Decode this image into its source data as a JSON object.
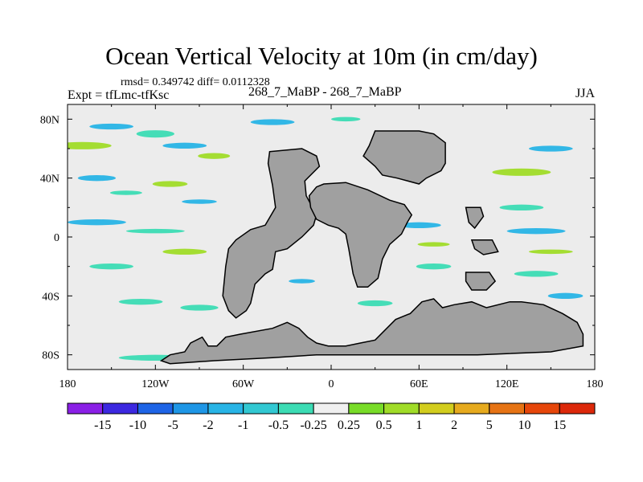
{
  "chart_data": {
    "type": "heatmap",
    "title": "Ocean Vertical Velocity at 10m (in cm/day)",
    "stats_label": "rmsd= 0.349742 diff= 0.0112328",
    "left_label": "Expt = tfLmc-tfKsc",
    "center_label": "268_7_MaBP - 268_7_MaBP",
    "right_label": "JJA",
    "x_ticks": [
      {
        "value": -180,
        "label": "180"
      },
      {
        "value": -120,
        "label": "120W"
      },
      {
        "value": -60,
        "label": "60W"
      },
      {
        "value": 0,
        "label": "0"
      },
      {
        "value": 60,
        "label": "60E"
      },
      {
        "value": 120,
        "label": "120E"
      },
      {
        "value": 180,
        "label": "180"
      }
    ],
    "y_ticks": [
      {
        "value": 80,
        "label": "80N"
      },
      {
        "value": 40,
        "label": "40N"
      },
      {
        "value": 0,
        "label": "0"
      },
      {
        "value": -40,
        "label": "40S"
      },
      {
        "value": -80,
        "label": "80S"
      }
    ],
    "xlim": [
      -180,
      180
    ],
    "ylim": [
      -90,
      90
    ],
    "colorbar": {
      "labels": [
        "-15",
        "-10",
        "-5",
        "-2",
        "-1",
        "-0.5",
        "-0.25",
        "0.25",
        "0.5",
        "1",
        "2",
        "5",
        "10",
        "15"
      ],
      "colors": [
        "#8a1fe6",
        "#3c28e0",
        "#1e64e6",
        "#1e96e6",
        "#28b4e6",
        "#32c8d2",
        "#3cdcb4",
        "#f0f0f0",
        "#78dc28",
        "#a0dc28",
        "#d2cd1e",
        "#e6aa1e",
        "#e67314",
        "#e6460a",
        "#dc280a"
      ]
    },
    "colors": {
      "land": "#a0a0a0",
      "neutral": "#ececec",
      "blue": "#28b4e6",
      "teal": "#3cdcb4",
      "green": "#a0dc28"
    },
    "land_polygons": [
      [
        [
          -42,
          58
        ],
        [
          -20,
          60
        ],
        [
          -10,
          55
        ],
        [
          -8,
          48
        ],
        [
          -18,
          38
        ],
        [
          -17,
          28
        ],
        [
          -10,
          15
        ],
        [
          -12,
          8
        ],
        [
          -20,
          0
        ],
        [
          -30,
          -8
        ],
        [
          -38,
          -10
        ],
        [
          -40,
          -22
        ],
        [
          -45,
          -25
        ],
        [
          -52,
          -32
        ],
        [
          -55,
          -45
        ],
        [
          -58,
          -50
        ],
        [
          -65,
          -55
        ],
        [
          -70,
          -50
        ],
        [
          -74,
          -40
        ],
        [
          -72,
          -20
        ],
        [
          -70,
          -8
        ],
        [
          -65,
          -2
        ],
        [
          -55,
          5
        ],
        [
          -45,
          8
        ],
        [
          -38,
          20
        ],
        [
          -40,
          35
        ],
        [
          -43,
          50
        ]
      ],
      [
        [
          30,
          72
        ],
        [
          60,
          72
        ],
        [
          70,
          70
        ],
        [
          78,
          64
        ],
        [
          78,
          50
        ],
        [
          75,
          45
        ],
        [
          65,
          40
        ],
        [
          60,
          36
        ],
        [
          45,
          40
        ],
        [
          35,
          42
        ],
        [
          30,
          48
        ],
        [
          22,
          55
        ],
        [
          26,
          62
        ]
      ],
      [
        [
          -5,
          36
        ],
        [
          10,
          37
        ],
        [
          25,
          32
        ],
        [
          40,
          25
        ],
        [
          50,
          22
        ],
        [
          55,
          15
        ],
        [
          52,
          10
        ],
        [
          48,
          2
        ],
        [
          40,
          -5
        ],
        [
          35,
          -15
        ],
        [
          32,
          -28
        ],
        [
          25,
          -34
        ],
        [
          18,
          -34
        ],
        [
          15,
          -25
        ],
        [
          12,
          -8
        ],
        [
          10,
          2
        ],
        [
          5,
          6
        ],
        [
          -2,
          8
        ],
        [
          -10,
          12
        ],
        [
          -14,
          20
        ],
        [
          -15,
          28
        ],
        [
          -10,
          34
        ]
      ],
      [
        [
          92,
          20
        ],
        [
          102,
          20
        ],
        [
          104,
          14
        ],
        [
          98,
          6
        ],
        [
          94,
          10
        ]
      ],
      [
        [
          96,
          -2
        ],
        [
          110,
          -2
        ],
        [
          114,
          -10
        ],
        [
          104,
          -12
        ],
        [
          98,
          -8
        ]
      ],
      [
        [
          92,
          -24
        ],
        [
          108,
          -24
        ],
        [
          112,
          -30
        ],
        [
          106,
          -36
        ],
        [
          96,
          -36
        ],
        [
          92,
          -30
        ]
      ],
      [
        [
          62,
          -44
        ],
        [
          70,
          -42
        ],
        [
          76,
          -48
        ],
        [
          84,
          -46
        ],
        [
          96,
          -44
        ],
        [
          106,
          -48
        ],
        [
          122,
          -44
        ],
        [
          130,
          -44
        ],
        [
          145,
          -46
        ],
        [
          158,
          -52
        ],
        [
          168,
          -58
        ],
        [
          172,
          -66
        ],
        [
          172,
          -74
        ],
        [
          150,
          -78
        ],
        [
          100,
          -80
        ],
        [
          60,
          -80
        ],
        [
          30,
          -80
        ],
        [
          10,
          -80
        ],
        [
          -10,
          -80
        ],
        [
          -40,
          -82
        ],
        [
          -80,
          -84
        ],
        [
          -110,
          -86
        ],
        [
          -116,
          -84
        ],
        [
          -110,
          -80
        ],
        [
          -100,
          -78
        ],
        [
          -96,
          -72
        ],
        [
          -88,
          -68
        ],
        [
          -84,
          -74
        ],
        [
          -78,
          -74
        ],
        [
          -72,
          -68
        ],
        [
          -62,
          -66
        ],
        [
          -40,
          -62
        ],
        [
          -30,
          -58
        ],
        [
          -22,
          -62
        ],
        [
          -16,
          -68
        ],
        [
          -10,
          -72
        ],
        [
          -2,
          -74
        ],
        [
          10,
          -74
        ],
        [
          20,
          -72
        ],
        [
          30,
          -70
        ],
        [
          36,
          -64
        ],
        [
          44,
          -56
        ],
        [
          54,
          -52
        ]
      ]
    ],
    "anomaly_bands": [
      {
        "lon": -170,
        "lat": 62,
        "w": 40,
        "h": 5,
        "cat": "green"
      },
      {
        "lon": -150,
        "lat": 75,
        "w": 30,
        "h": 4,
        "cat": "blue"
      },
      {
        "lon": -120,
        "lat": 70,
        "w": 26,
        "h": 5,
        "cat": "teal"
      },
      {
        "lon": -100,
        "lat": 62,
        "w": 30,
        "h": 4,
        "cat": "blue"
      },
      {
        "lon": -80,
        "lat": 55,
        "w": 22,
        "h": 4,
        "cat": "green"
      },
      {
        "lon": -160,
        "lat": 40,
        "w": 26,
        "h": 4,
        "cat": "blue"
      },
      {
        "lon": -140,
        "lat": 30,
        "w": 22,
        "h": 3,
        "cat": "teal"
      },
      {
        "lon": -110,
        "lat": 36,
        "w": 24,
        "h": 4,
        "cat": "green"
      },
      {
        "lon": -90,
        "lat": 24,
        "w": 24,
        "h": 3,
        "cat": "blue"
      },
      {
        "lon": -160,
        "lat": 10,
        "w": 40,
        "h": 4,
        "cat": "blue"
      },
      {
        "lon": -120,
        "lat": 4,
        "w": 40,
        "h": 3,
        "cat": "teal"
      },
      {
        "lon": -100,
        "lat": -10,
        "w": 30,
        "h": 4,
        "cat": "green"
      },
      {
        "lon": -150,
        "lat": -20,
        "w": 30,
        "h": 4,
        "cat": "teal"
      },
      {
        "lon": -130,
        "lat": -44,
        "w": 30,
        "h": 4,
        "cat": "teal"
      },
      {
        "lon": -90,
        "lat": -48,
        "w": 26,
        "h": 4,
        "cat": "teal"
      },
      {
        "lon": -120,
        "lat": -82,
        "w": 50,
        "h": 4,
        "cat": "teal"
      },
      {
        "lon": -40,
        "lat": 78,
        "w": 30,
        "h": 4,
        "cat": "blue"
      },
      {
        "lon": 10,
        "lat": 80,
        "w": 20,
        "h": 3,
        "cat": "teal"
      },
      {
        "lon": -20,
        "lat": -30,
        "w": 18,
        "h": 3,
        "cat": "blue"
      },
      {
        "lon": 30,
        "lat": -45,
        "w": 24,
        "h": 4,
        "cat": "teal"
      },
      {
        "lon": 60,
        "lat": 8,
        "w": 30,
        "h": 4,
        "cat": "blue"
      },
      {
        "lon": 70,
        "lat": -20,
        "w": 24,
        "h": 4,
        "cat": "teal"
      },
      {
        "lon": 70,
        "lat": -5,
        "w": 22,
        "h": 3,
        "cat": "green"
      },
      {
        "lon": 130,
        "lat": 44,
        "w": 40,
        "h": 5,
        "cat": "green"
      },
      {
        "lon": 150,
        "lat": 60,
        "w": 30,
        "h": 4,
        "cat": "blue"
      },
      {
        "lon": 130,
        "lat": 20,
        "w": 30,
        "h": 4,
        "cat": "teal"
      },
      {
        "lon": 140,
        "lat": 4,
        "w": 40,
        "h": 4,
        "cat": "blue"
      },
      {
        "lon": 150,
        "lat": -10,
        "w": 30,
        "h": 3,
        "cat": "green"
      },
      {
        "lon": 140,
        "lat": -25,
        "w": 30,
        "h": 4,
        "cat": "teal"
      },
      {
        "lon": 160,
        "lat": -40,
        "w": 24,
        "h": 4,
        "cat": "blue"
      }
    ]
  }
}
